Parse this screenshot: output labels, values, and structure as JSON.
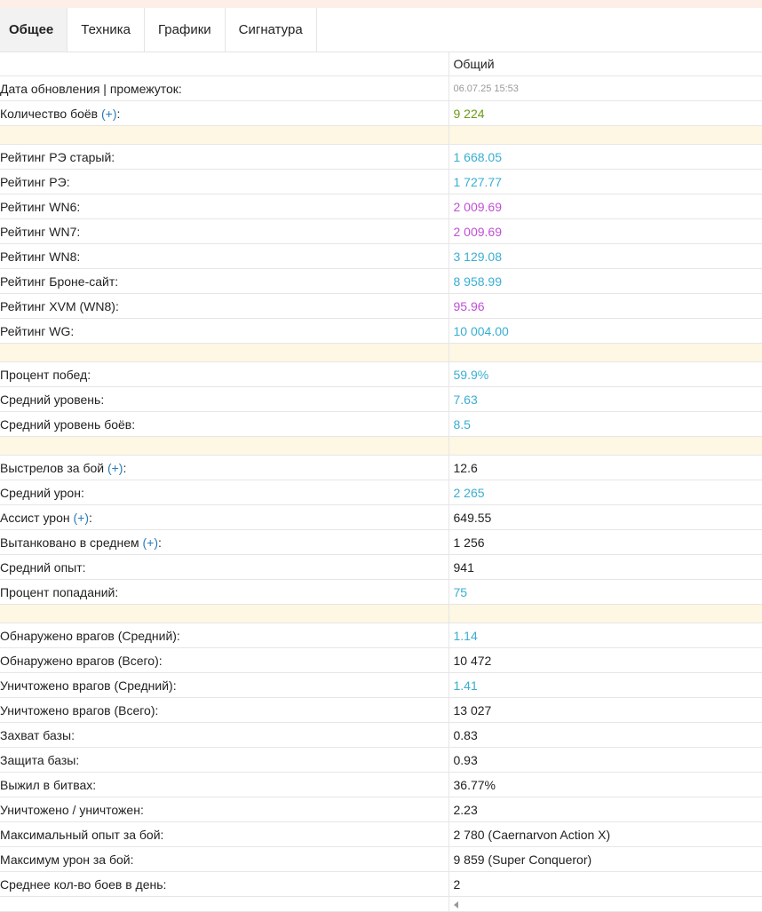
{
  "tabs": [
    "Общее",
    "Техника",
    "Графики",
    "Сигнатура"
  ],
  "header": {
    "column": "Общий"
  },
  "rows": {
    "date": {
      "label": "Дата обновления | промежуток:",
      "value": "06.07.25 15:53"
    },
    "battles": {
      "label": "Количество боёв ",
      "plus": "(+)",
      "suffix": ":",
      "value": "9 224"
    },
    "re_old": {
      "label": "Рейтинг РЭ старый:",
      "value": "1 668.05"
    },
    "re": {
      "label": "Рейтинг РЭ:",
      "value": "1 727.77"
    },
    "wn6": {
      "label": "Рейтинг WN6:",
      "value": "2 009.69"
    },
    "wn7": {
      "label": "Рейтинг WN7:",
      "value": "2 009.69"
    },
    "wn8": {
      "label": "Рейтинг WN8:",
      "value": "3 129.08"
    },
    "bronesite": {
      "label": "Рейтинг Броне-сайт:",
      "value": "8 958.99"
    },
    "xvm": {
      "label": "Рейтинг XVM (WN8):",
      "value": "95.96"
    },
    "wg": {
      "label": "Рейтинг WG:",
      "value": "10 004.00"
    },
    "winrate": {
      "label": "Процент побед:",
      "value": "59.9%"
    },
    "avg_tier": {
      "label": "Средний уровень:",
      "value": "7.63"
    },
    "avg_battle_tier": {
      "label": "Средний уровень боёв:",
      "value": "8.5"
    },
    "shots": {
      "label": "Выстрелов за бой ",
      "plus": "(+)",
      "suffix": ":",
      "value": "12.6"
    },
    "avg_damage": {
      "label": "Средний урон:",
      "value": "2 265"
    },
    "assist": {
      "label": "Ассист урон ",
      "plus": "(+)",
      "suffix": ":",
      "value": "649.55"
    },
    "tanked": {
      "label": "Вытанковано в среднем ",
      "plus": "(+)",
      "suffix": ":",
      "value": "1 256"
    },
    "avg_xp": {
      "label": "Средний опыт:",
      "value": "941"
    },
    "hit_ratio": {
      "label": "Процент попаданий:",
      "value": "75"
    },
    "spotted_avg": {
      "label": "Обнаружено врагов (Средний):",
      "value": "1.14"
    },
    "spotted_total": {
      "label": "Обнаружено врагов (Всего):",
      "value": "10 472"
    },
    "frags_avg": {
      "label": "Уничтожено врагов (Средний):",
      "value": "1.41"
    },
    "frags_total": {
      "label": "Уничтожено врагов (Всего):",
      "value": "13 027"
    },
    "capture": {
      "label": "Захват базы:",
      "value": "0.83"
    },
    "defense": {
      "label": "Защита базы:",
      "value": "0.93"
    },
    "survived": {
      "label": "Выжил в битвах:",
      "value": "36.77%"
    },
    "kd": {
      "label": "Уничтожено / уничтожен:",
      "value": "2.23"
    },
    "max_xp": {
      "label": "Максимальный опыт за бой:",
      "value": "2 780 (Caernarvon Action X)"
    },
    "max_damage": {
      "label": "Максимум урон за бой:",
      "value": "9 859 (Super Conqueror)"
    },
    "per_day": {
      "label": "Среднее кол-во боев в день:",
      "value": "2"
    }
  },
  "colors": {
    "green": "#6a9a17",
    "cyan": "#3aaed2",
    "violet": "#c24fd6",
    "separator": "#fdf7e3"
  },
  "icons": {
    "scroll_left": "caret-left-icon"
  }
}
